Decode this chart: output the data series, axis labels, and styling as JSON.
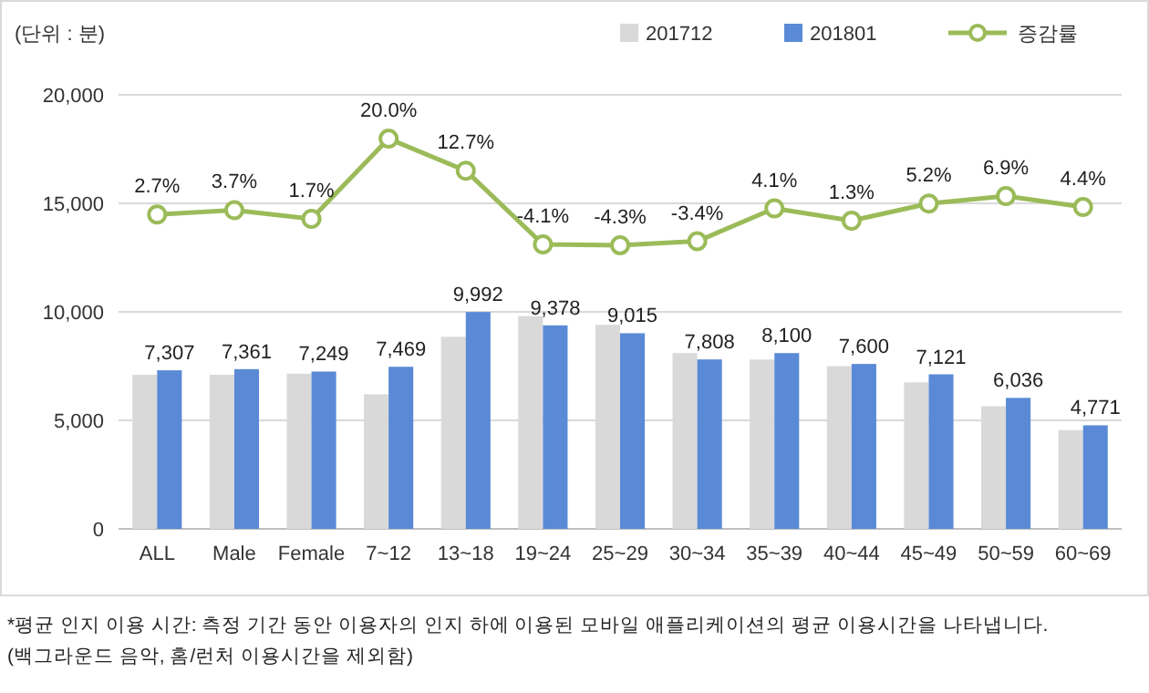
{
  "chart_data": {
    "type": "bar",
    "ylabel": "(단위 : 분)",
    "categories": [
      "ALL",
      "Male",
      "Female",
      "7~12",
      "13~18",
      "19~24",
      "25~29",
      "30~34",
      "35~39",
      "40~44",
      "45~49",
      "50~59",
      "60~69"
    ],
    "series": [
      {
        "name": "201712",
        "color": "#d9d9d9",
        "values": [
          7100,
          7100,
          7150,
          6200,
          8850,
          9800,
          9400,
          8100,
          7800,
          7500,
          6750,
          5650,
          4550
        ]
      },
      {
        "name": "201801",
        "color": "#5a8ad6",
        "values": [
          7307,
          7361,
          7249,
          7469,
          9992,
          9378,
          9015,
          7808,
          8100,
          7600,
          7121,
          6036,
          4771
        ],
        "value_labels": [
          "7,307",
          "7,361",
          "7,249",
          "7,469",
          "9,992",
          "9,378",
          "9,015",
          "7,808",
          "8,100",
          "7,600",
          "7,121",
          "6,036",
          "4,771"
        ]
      },
      {
        "name": "증감률",
        "type": "line",
        "axis": "y2",
        "color": "#9bbb59",
        "marker": "circle",
        "values": [
          2.7,
          3.7,
          1.7,
          20.0,
          12.7,
          -4.1,
          -4.3,
          -3.4,
          4.1,
          1.3,
          5.2,
          6.9,
          4.4
        ],
        "value_labels": [
          "2.7%",
          "3.7%",
          "1.7%",
          "20.0%",
          "12.7%",
          "-4.1%",
          "-4.3%",
          "-3.4%",
          "4.1%",
          "1.3%",
          "5.2%",
          "6.9%",
          "4.4%"
        ]
      }
    ],
    "ylim": [
      0,
      20000
    ],
    "yticks": [
      {
        "value": 0,
        "label": "0"
      },
      {
        "value": 5000,
        "label": "5,000"
      },
      {
        "value": 10000,
        "label": "10,000"
      },
      {
        "value": 15000,
        "label": "15,000"
      },
      {
        "value": 20000,
        "label": "20,000"
      }
    ],
    "y2lim": [
      -69,
      30
    ],
    "grid": "y",
    "legend": "top",
    "annotations": [
      "*평균 인지 이용 시간: 측정 기간 동안 이용자의 인지 하에 이용된 모바일 애플리케이션의 평균 이용시간을 나타냅니다.",
      "(백그라운드 음악, 홈/런처 이용시간을 제외함)"
    ]
  }
}
